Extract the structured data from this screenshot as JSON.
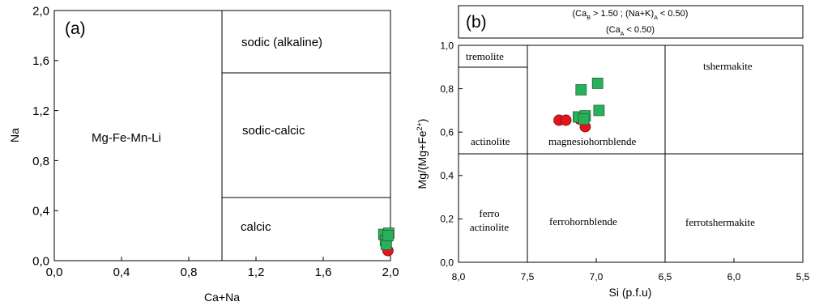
{
  "chart_data": [
    {
      "id": "a",
      "type": "scatter",
      "panel_label": "(a)",
      "xlabel": "Ca+Na",
      "ylabel": "Na",
      "xlim": [
        0.0,
        2.0
      ],
      "ylim": [
        0.0,
        2.0
      ],
      "x_ticks": [
        0.0,
        0.4,
        0.8,
        1.2,
        1.6,
        2.0
      ],
      "x_tick_labels": [
        "0,0",
        "0,4",
        "0,8",
        "1,2",
        "1,6",
        "2,0"
      ],
      "y_ticks": [
        0.0,
        0.4,
        0.8,
        1.2,
        1.6,
        2.0
      ],
      "y_tick_labels": [
        "0,0",
        "0,4",
        "0,8",
        "1,2",
        "1,6",
        "2,0"
      ],
      "field_labels": {
        "mg_fe_mn_li": "Mg-Fe-Mn-Li",
        "sodic": "sodic (alkaline)",
        "sodic_calcic": "sodic-calcic",
        "calcic": "calcic"
      },
      "series": [
        {
          "marker": "circle",
          "color": "#e8141b",
          "points": [
            [
              1.985,
              0.08
            ],
            [
              1.98,
              0.19
            ],
            [
              1.975,
              0.15
            ]
          ]
        },
        {
          "marker": "square",
          "color": "#27b15b",
          "points": [
            [
              1.96,
              0.21
            ],
            [
              1.97,
              0.16
            ],
            [
              1.99,
              0.22
            ],
            [
              1.975,
              0.13
            ],
            [
              1.985,
              0.2
            ]
          ]
        }
      ]
    },
    {
      "id": "b",
      "type": "scatter",
      "panel_label": "(b)",
      "xlabel": "Si (p.f.u)",
      "ylabel": "Mg/(Mg+Fe²⁺)",
      "xlim": [
        8.0,
        5.5
      ],
      "ylim": [
        0.0,
        1.0
      ],
      "x_ticks": [
        8.0,
        7.5,
        7.0,
        6.5,
        6.0,
        5.5
      ],
      "x_tick_labels": [
        "8,0",
        "7,5",
        "7,0",
        "6,5",
        "6,0",
        "5,5"
      ],
      "y_ticks": [
        0.0,
        0.2,
        0.4,
        0.6,
        0.8,
        1.0
      ],
      "y_tick_labels": [
        "0,0",
        "0,2",
        "0,4",
        "0,6",
        "0,8",
        "1,0"
      ],
      "condition_line1": "(Ca_B > 1.50 ; (Na+K)_A < 0.50)",
      "condition_line2": "(Ca_A < 0.50)",
      "field_labels": {
        "tremolite": "tremolite",
        "actinolite": "actinolite",
        "magnesiohornblende": "magnesiohornblende",
        "tshermakite": "tshermakite",
        "ferro_actinolite_1": "ferro",
        "ferro_actinolite_2": "actinolite",
        "ferrohornblende": "ferrohornblende",
        "ferrotshermakite": "ferrotshermakite"
      },
      "series": [
        {
          "marker": "circle",
          "color": "#e8141b",
          "points": [
            [
              7.27,
              0.655
            ],
            [
              7.22,
              0.655
            ],
            [
              7.08,
              0.625
            ],
            [
              7.12,
              0.66
            ]
          ]
        },
        {
          "marker": "square",
          "color": "#27b15b",
          "points": [
            [
              7.11,
              0.795
            ],
            [
              6.99,
              0.825
            ],
            [
              6.98,
              0.7
            ],
            [
              7.13,
              0.67
            ],
            [
              7.08,
              0.675
            ],
            [
              7.09,
              0.66
            ]
          ]
        }
      ]
    }
  ]
}
